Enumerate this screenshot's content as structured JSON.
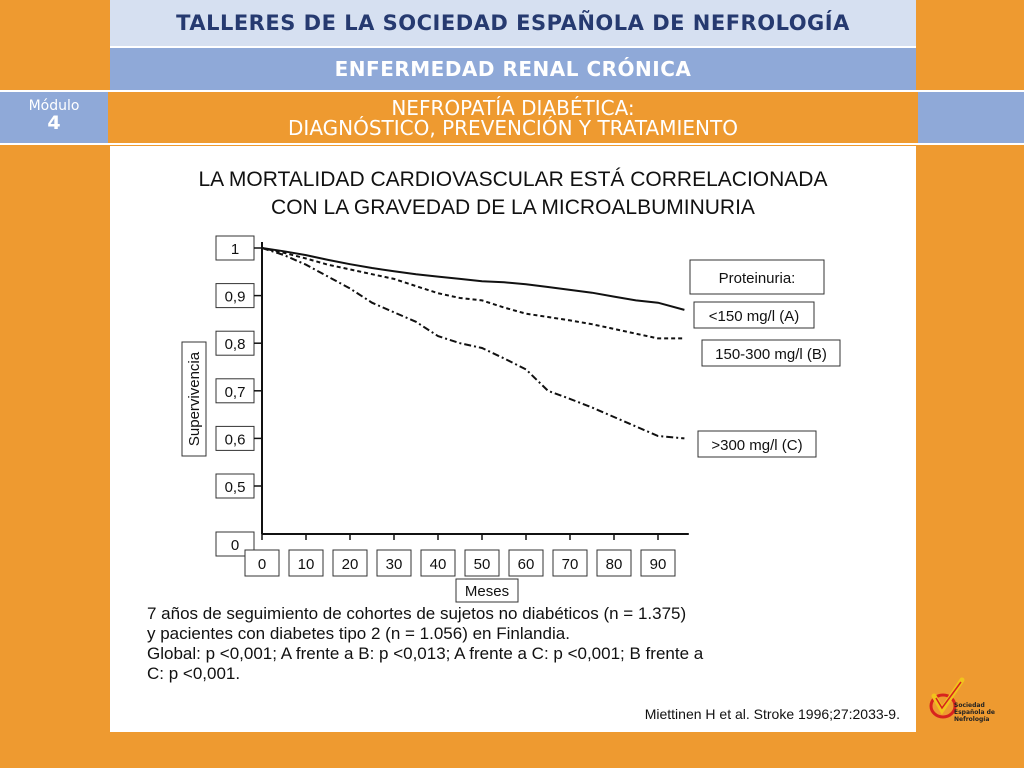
{
  "header": {
    "title": "TALLERES DE LA SOCIEDAD ESPAÑOLA DE NEFROLOGÍA",
    "subtitle": "ENFERMEDAD RENAL CRÓNICA",
    "topic_line1": "NEFROPATÍA DIABÉTICA:",
    "topic_line2": "DIAGNÓSTICO, PREVENCIÓN  Y TRATAMIENTO"
  },
  "module": {
    "label": "Módulo",
    "number": "4"
  },
  "chart_data": {
    "type": "line",
    "title": "LA MORTALIDAD CARDIOVASCULAR ESTÁ CORRELACIONADA\nCON LA GRAVEDAD DE LA MICROALBUMINURIA",
    "xlabel": "Meses",
    "ylabel": "Supervivencia",
    "x_ticks": [
      "0",
      "10",
      "20",
      "30",
      "40",
      "50",
      "60",
      "70",
      "80",
      "90"
    ],
    "y_ticks": [
      "0",
      "0,5",
      "0,6",
      "0,7",
      "0,8",
      "0,9",
      "1"
    ],
    "xlim": [
      0,
      97
    ],
    "legend_title": "Proteinuria:",
    "series": [
      {
        "name": "<150 mg/l (A)",
        "style": "solid",
        "x": [
          0,
          5,
          10,
          15,
          20,
          25,
          30,
          35,
          40,
          45,
          50,
          55,
          60,
          65,
          70,
          75,
          80,
          85,
          90,
          96
        ],
        "y": [
          1.0,
          0.993,
          0.985,
          0.975,
          0.966,
          0.958,
          0.951,
          0.945,
          0.94,
          0.935,
          0.93,
          0.928,
          0.924,
          0.918,
          0.912,
          0.906,
          0.898,
          0.89,
          0.885,
          0.87
        ]
      },
      {
        "name": "150-300 mg/l (B)",
        "style": "dashed",
        "x": [
          0,
          5,
          10,
          15,
          20,
          25,
          30,
          35,
          40,
          45,
          50,
          55,
          60,
          65,
          70,
          75,
          80,
          85,
          90,
          96
        ],
        "y": [
          1.0,
          0.99,
          0.978,
          0.965,
          0.955,
          0.945,
          0.935,
          0.92,
          0.905,
          0.895,
          0.89,
          0.875,
          0.862,
          0.855,
          0.848,
          0.84,
          0.83,
          0.82,
          0.81,
          0.81
        ]
      },
      {
        "name": ">300 mg/l (C)",
        "style": "dashdot",
        "x": [
          0,
          5,
          10,
          15,
          20,
          25,
          30,
          35,
          40,
          45,
          50,
          55,
          60,
          65,
          70,
          75,
          80,
          85,
          90,
          96
        ],
        "y": [
          1.0,
          0.985,
          0.965,
          0.94,
          0.915,
          0.885,
          0.865,
          0.845,
          0.815,
          0.8,
          0.79,
          0.768,
          0.745,
          0.7,
          0.683,
          0.665,
          0.645,
          0.625,
          0.605,
          0.6
        ]
      }
    ]
  },
  "caption": [
    "7 años de seguimiento de cohortes de sujetos no diabéticos (n = 1.375)",
    "y pacientes con diabetes tipo 2 (n = 1.056) en Finlandia.",
    "Global: p <0,001; A frente a B: p <0,013; A frente a C: p <0,001; B frente a",
    "C: p <0,001."
  ],
  "source": "Miettinen H et al. Stroke 1996;27:2033-9.",
  "logo": {
    "text": "Sociedad\nEspañola de\nNefrología",
    "colors": {
      "yellow": "#f1c31c",
      "red": "#d7231e"
    }
  }
}
